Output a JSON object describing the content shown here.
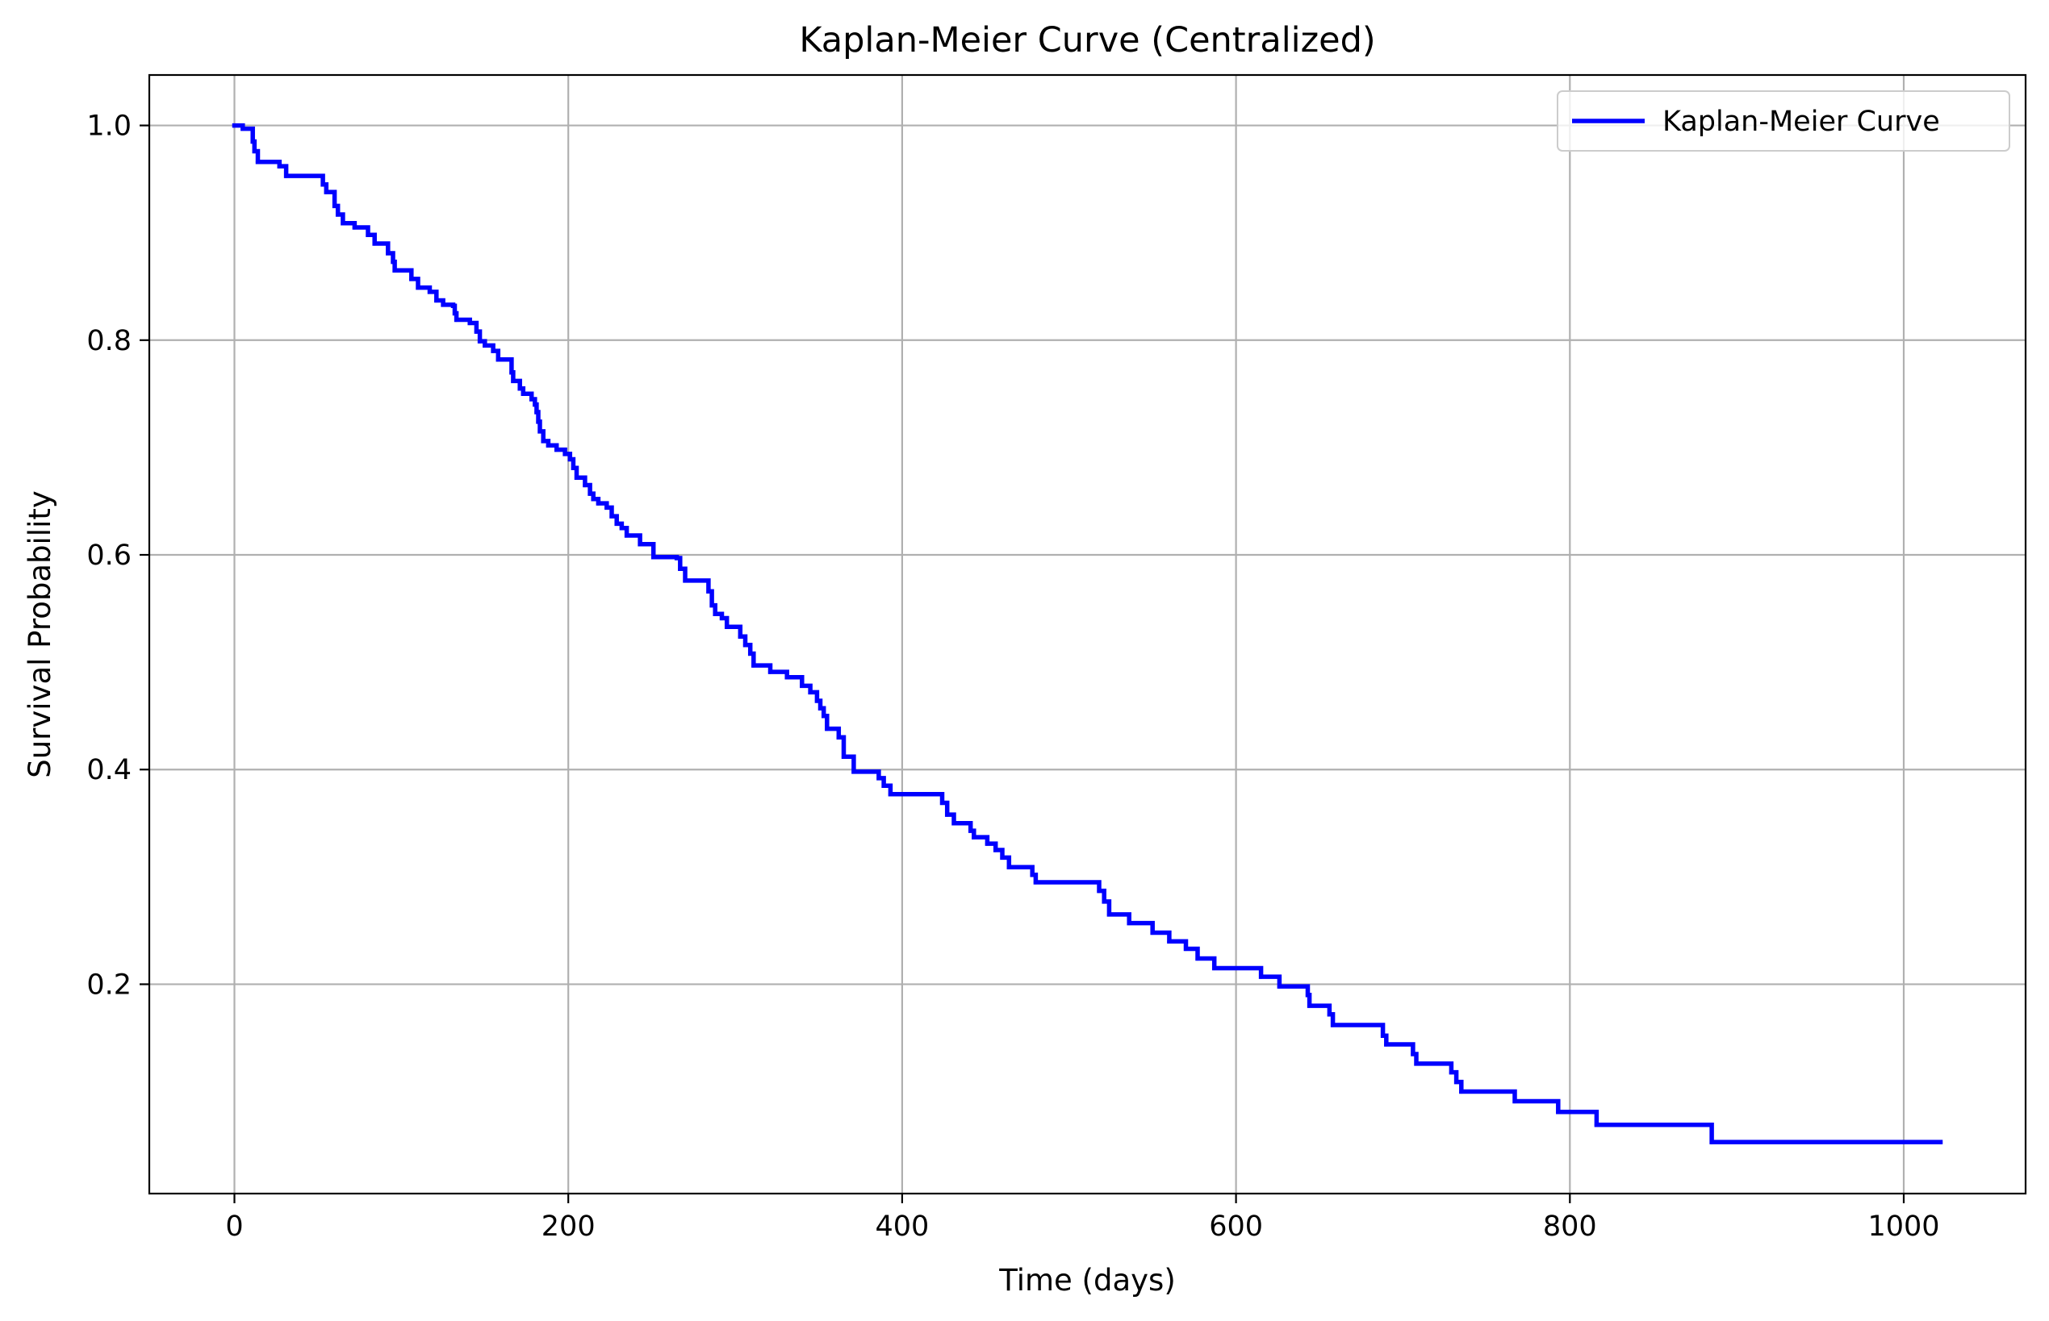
{
  "chart_data": {
    "type": "line",
    "title": "Kaplan-Meier Curve (Centralized)",
    "xlabel": "Time (days)",
    "ylabel": "Survival Probability",
    "xlim": [
      -51,
      1073
    ],
    "ylim": [
      0.005,
      1.047
    ],
    "xticks": [
      0,
      200,
      400,
      600,
      800,
      1000
    ],
    "yticks": [
      0.2,
      0.4,
      0.6,
      0.8,
      1.0
    ],
    "xtick_labels": [
      "0",
      "200",
      "400",
      "600",
      "800",
      "1000"
    ],
    "ytick_labels": [
      "0.2",
      "0.4",
      "0.6",
      "0.8",
      "1.0"
    ],
    "grid": true,
    "legend_position": "top-right",
    "colors": {
      "series": "#0000ff",
      "grid": "#b0b0b0",
      "axes": "#000000"
    },
    "series": [
      {
        "name": "Kaplan-Meier Curve",
        "step": "post",
        "points": [
          [
            0,
            1.0
          ],
          [
            5,
            0.997
          ],
          [
            11,
            0.985
          ],
          [
            12,
            0.976
          ],
          [
            14,
            0.966
          ],
          [
            27,
            0.962
          ],
          [
            31,
            0.953
          ],
          [
            53,
            0.945
          ],
          [
            55,
            0.938
          ],
          [
            60,
            0.925
          ],
          [
            62,
            0.917
          ],
          [
            65,
            0.909
          ],
          [
            72,
            0.905
          ],
          [
            80,
            0.898
          ],
          [
            84,
            0.89
          ],
          [
            92,
            0.881
          ],
          [
            95,
            0.873
          ],
          [
            96,
            0.865
          ],
          [
            106,
            0.857
          ],
          [
            110,
            0.849
          ],
          [
            117,
            0.845
          ],
          [
            121,
            0.837
          ],
          [
            125,
            0.833
          ],
          [
            131,
            0.832
          ],
          [
            132,
            0.825
          ],
          [
            133,
            0.819
          ],
          [
            141,
            0.816
          ],
          [
            145,
            0.808
          ],
          [
            147,
            0.799
          ],
          [
            150,
            0.795
          ],
          [
            155,
            0.79
          ],
          [
            158,
            0.782
          ],
          [
            166,
            0.77
          ],
          [
            167,
            0.762
          ],
          [
            171,
            0.755
          ],
          [
            173,
            0.75
          ],
          [
            178,
            0.745
          ],
          [
            180,
            0.74
          ],
          [
            181,
            0.733
          ],
          [
            182,
            0.724
          ],
          [
            183,
            0.715
          ],
          [
            185,
            0.706
          ],
          [
            188,
            0.702
          ],
          [
            193,
            0.698
          ],
          [
            198,
            0.694
          ],
          [
            201,
            0.689
          ],
          [
            203,
            0.681
          ],
          [
            205,
            0.672
          ],
          [
            210,
            0.665
          ],
          [
            213,
            0.657
          ],
          [
            215,
            0.652
          ],
          [
            218,
            0.648
          ],
          [
            223,
            0.644
          ],
          [
            226,
            0.636
          ],
          [
            229,
            0.629
          ],
          [
            232,
            0.625
          ],
          [
            235,
            0.618
          ],
          [
            243,
            0.61
          ],
          [
            251,
            0.598
          ],
          [
            265,
            0.597
          ],
          [
            267,
            0.587
          ],
          [
            270,
            0.576
          ],
          [
            284,
            0.566
          ],
          [
            286,
            0.553
          ],
          [
            288,
            0.545
          ],
          [
            292,
            0.541
          ],
          [
            295,
            0.533
          ],
          [
            303,
            0.524
          ],
          [
            306,
            0.516
          ],
          [
            309,
            0.508
          ],
          [
            311,
            0.497
          ],
          [
            321,
            0.491
          ],
          [
            331,
            0.486
          ],
          [
            340,
            0.478
          ],
          [
            345,
            0.472
          ],
          [
            349,
            0.464
          ],
          [
            351,
            0.457
          ],
          [
            353,
            0.45
          ],
          [
            355,
            0.438
          ],
          [
            362,
            0.43
          ],
          [
            365,
            0.412
          ],
          [
            371,
            0.398
          ],
          [
            386,
            0.392
          ],
          [
            389,
            0.385
          ],
          [
            393,
            0.377
          ],
          [
            424,
            0.369
          ],
          [
            427,
            0.358
          ],
          [
            431,
            0.35
          ],
          [
            441,
            0.343
          ],
          [
            443,
            0.337
          ],
          [
            451,
            0.331
          ],
          [
            456,
            0.325
          ],
          [
            460,
            0.318
          ],
          [
            464,
            0.309
          ],
          [
            478,
            0.302
          ],
          [
            480,
            0.295
          ],
          [
            518,
            0.287
          ],
          [
            521,
            0.277
          ],
          [
            524,
            0.265
          ],
          [
            536,
            0.257
          ],
          [
            550,
            0.248
          ],
          [
            560,
            0.24
          ],
          [
            570,
            0.233
          ],
          [
            577,
            0.224
          ],
          [
            587,
            0.215
          ],
          [
            615,
            0.207
          ],
          [
            626,
            0.198
          ],
          [
            643,
            0.19
          ],
          [
            644,
            0.18
          ],
          [
            656,
            0.172
          ],
          [
            658,
            0.162
          ],
          [
            688,
            0.152
          ],
          [
            690,
            0.144
          ],
          [
            706,
            0.135
          ],
          [
            708,
            0.126
          ],
          [
            729,
            0.118
          ],
          [
            732,
            0.109
          ],
          [
            735,
            0.1
          ],
          [
            767,
            0.091
          ],
          [
            793,
            0.081
          ],
          [
            816,
            0.069
          ],
          [
            885,
            0.053
          ],
          [
            1022,
            0.053
          ]
        ]
      }
    ]
  }
}
